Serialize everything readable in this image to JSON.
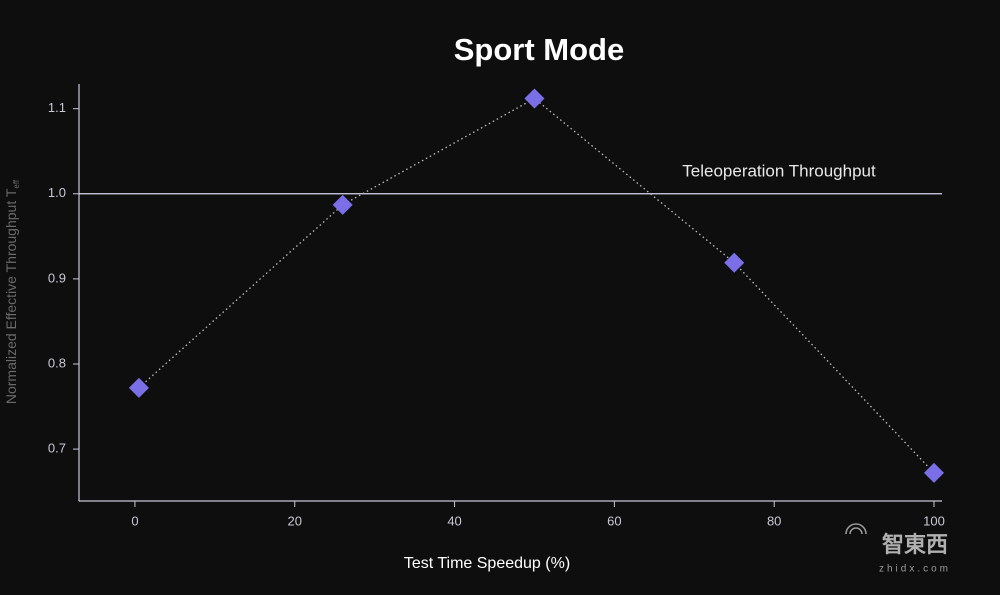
{
  "chart_data": {
    "type": "scatter-line",
    "title": "Sport Mode",
    "xlabel": "Test Time Speedup (%)",
    "ylabel": "Normalized Effective Throughput  T",
    "ylabel_subscript": "eff",
    "x": [
      0.5,
      26,
      50,
      75,
      100
    ],
    "values": [
      0.772,
      0.987,
      1.112,
      0.919,
      0.672
    ],
    "color": "#7b6fe8",
    "line_color": "#bdbdbd",
    "xlim": [
      -7,
      101
    ],
    "ylim": [
      0.639,
      1.129
    ],
    "xticks": [
      0,
      20,
      40,
      60,
      80,
      100
    ],
    "yticks": [
      0.7,
      0.8,
      0.9,
      {
        "value": 1,
        "label": "1.0"
      },
      1.1
    ],
    "reference_line": {
      "value": 1,
      "label": "Teleoperation Throughput"
    },
    "grid": false,
    "watermark": {
      "text": "智東西",
      "url": "zhidx.com"
    }
  }
}
